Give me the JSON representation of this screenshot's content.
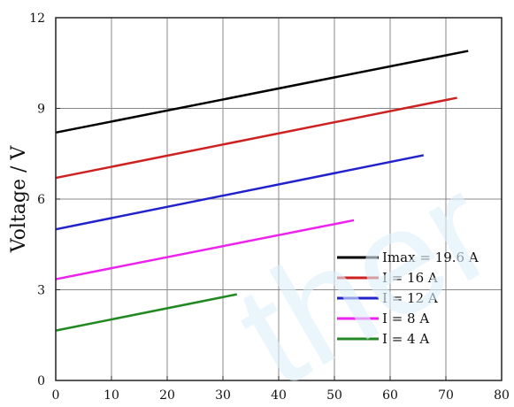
{
  "chart_data": {
    "type": "line",
    "title": "",
    "xlabel": "",
    "ylabel": "Voltage / V",
    "xlim": [
      0,
      80
    ],
    "ylim": [
      0,
      12
    ],
    "xticks": [
      0,
      10,
      20,
      30,
      40,
      50,
      60,
      70,
      80
    ],
    "yticks": [
      0,
      3,
      6,
      9,
      12
    ],
    "grid": true,
    "legend_position": "bottom-right",
    "series": [
      {
        "name": "Imax = 19.6 A",
        "color": "#000000",
        "x": [
          0,
          74
        ],
        "y": [
          8.2,
          10.9
        ]
      },
      {
        "name": "I = 16 A",
        "color": "#cc2222",
        "x": [
          0,
          72
        ],
        "y": [
          6.7,
          9.35
        ]
      },
      {
        "name": "I = 12 A",
        "color": "#2222cc",
        "x": [
          0,
          66
        ],
        "y": [
          5.0,
          7.45
        ]
      },
      {
        "name": "I = 8 A",
        "color": "#ee22ee",
        "x": [
          0,
          53.5
        ],
        "y": [
          3.35,
          5.3
        ]
      },
      {
        "name": "I = 4 A",
        "color": "#228822",
        "x": [
          0,
          32.5
        ],
        "y": [
          1.65,
          2.85
        ]
      }
    ]
  },
  "watermark": "ther"
}
